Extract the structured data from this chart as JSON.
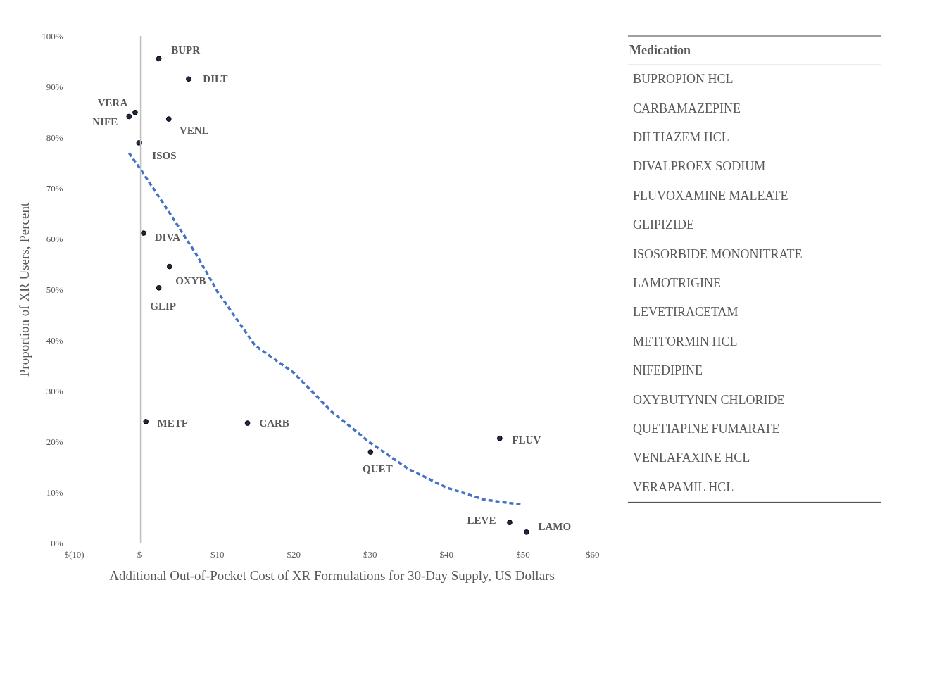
{
  "chart_data": {
    "type": "scatter",
    "xlabel": "Additional Out-of-Pocket Cost of XR Formulations for 30-Day Supply, US Dollars",
    "ylabel": "Proportion of XR Users, Percent",
    "xlim": [
      -10,
      60
    ],
    "ylim": [
      0,
      100
    ],
    "xticks": [
      {
        "value": -10,
        "label": "$(10)"
      },
      {
        "value": 0,
        "label": "$-"
      },
      {
        "value": 10,
        "label": "$10"
      },
      {
        "value": 20,
        "label": "$20"
      },
      {
        "value": 30,
        "label": "$30"
      },
      {
        "value": 40,
        "label": "$40"
      },
      {
        "value": 50,
        "label": "$50"
      },
      {
        "value": 60,
        "label": "$60"
      }
    ],
    "yticks": [
      {
        "value": 0,
        "label": "0%"
      },
      {
        "value": 10,
        "label": "10%"
      },
      {
        "value": 20,
        "label": "20%"
      },
      {
        "value": 30,
        "label": "30%"
      },
      {
        "value": 40,
        "label": "40%"
      },
      {
        "value": 50,
        "label": "50%"
      },
      {
        "value": 60,
        "label": "60%"
      },
      {
        "value": 70,
        "label": "70%"
      },
      {
        "value": 80,
        "label": "80%"
      },
      {
        "value": 90,
        "label": "90%"
      },
      {
        "value": 100,
        "label": "100%"
      }
    ],
    "grid": false,
    "ref_lines": [
      {
        "axis": "x",
        "value": 0,
        "color": "#bfbfbf"
      }
    ],
    "series": [
      {
        "marker": "circle",
        "color": "#1f2a44",
        "x": [
          2.4,
          6.3,
          -0.7,
          -1.5,
          3.7,
          -0.2,
          0.4,
          3.8,
          2.4,
          0.7,
          14.0,
          30.1,
          47.0,
          48.3,
          50.5
        ],
        "values": [
          95.5,
          91.5,
          84.9,
          84.1,
          83.6,
          78.9,
          61.1,
          54.5,
          50.3,
          23.9,
          23.6,
          17.9,
          20.6,
          4.0,
          2.1
        ]
      },
      {
        "type": "line",
        "marker": "none",
        "color": "#4472c4",
        "line_style": "dashed",
        "x": [
          -1.5,
          0,
          3.75,
          7.3,
          10,
          15,
          20,
          25,
          30,
          35,
          40,
          45,
          50
        ],
        "values": [
          76.9,
          73.7,
          65.2,
          56.9,
          49.7,
          38.9,
          33.6,
          25.9,
          19.8,
          14.6,
          10.9,
          8.5,
          7.5
        ]
      }
    ],
    "annotations": [
      {
        "text": "BUPR",
        "x": 2.4,
        "y": 95.5
      },
      {
        "text": "DILT",
        "x": 6.3,
        "y": 91.5
      },
      {
        "text": "VERA",
        "x": -0.7,
        "y": 84.9
      },
      {
        "text": "NIFE",
        "x": -1.5,
        "y": 84.1
      },
      {
        "text": "VENL",
        "x": 3.7,
        "y": 83.6
      },
      {
        "text": "ISOS",
        "x": -0.2,
        "y": 78.9
      },
      {
        "text": "DIVA",
        "x": 0.4,
        "y": 61.1
      },
      {
        "text": "OXYB",
        "x": 3.8,
        "y": 54.5
      },
      {
        "text": "GLIP",
        "x": 2.4,
        "y": 50.3
      },
      {
        "text": "METF",
        "x": 0.7,
        "y": 23.9
      },
      {
        "text": "CARB",
        "x": 14.0,
        "y": 23.6
      },
      {
        "text": "QUET",
        "x": 30.1,
        "y": 17.9
      },
      {
        "text": "FLUV",
        "x": 47.0,
        "y": 20.6
      },
      {
        "text": "LEVE",
        "x": 48.3,
        "y": 4.0
      },
      {
        "text": "LAMO",
        "x": 50.5,
        "y": 2.1
      },
      "Medication",
      "BUPROPION HCL",
      "CARBAMAZEPINE",
      "DILTIAZEM HCL",
      "DIVALPROEX SODIUM",
      "FLUVOXAMINE MALEATE",
      "GLIPIZIDE",
      "ISOSORBIDE MONONITRATE",
      "LAMOTRIGINE",
      "LEVETIRACETAM",
      "METFORMIN HCL",
      "NIFEDIPINE",
      "OXYBUTYNIN CHLORIDE",
      "QUETIAPINE FUMARATE",
      "VENLAFAXINE HCL",
      "VERAPAMIL HCL"
    ]
  }
}
